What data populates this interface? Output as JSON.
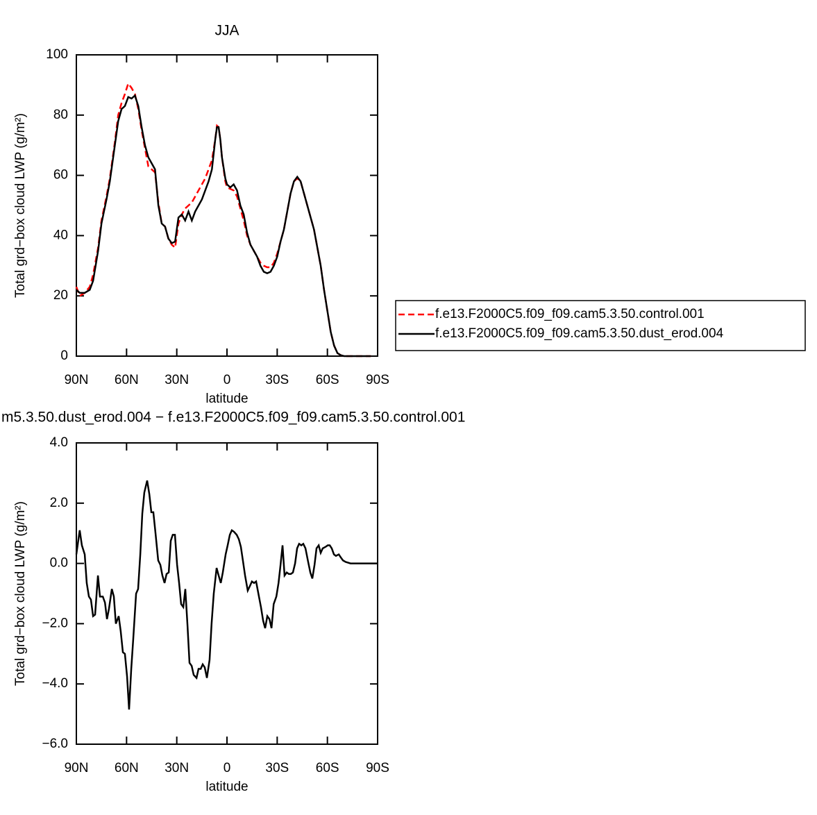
{
  "chart_data": [
    {
      "type": "line",
      "title": "JJA",
      "xlabel": "latitude",
      "ylabel": "Total grd−box cloud LWP (g/m²)",
      "xlim": [
        90,
        -90
      ],
      "xticks": [
        {
          "value": 90,
          "label": "90N"
        },
        {
          "value": 60,
          "label": "60N"
        },
        {
          "value": 30,
          "label": "30N"
        },
        0,
        {
          "value": -30,
          "label": "30S"
        },
        {
          "value": -60,
          "label": "60S"
        },
        {
          "value": -90,
          "label": "90S"
        }
      ],
      "ylim": [
        0,
        100
      ],
      "yticks": [
        0,
        20,
        40,
        60,
        80,
        100
      ],
      "legend": "right",
      "x": [
        90,
        88,
        85,
        82,
        80,
        77,
        75,
        72,
        70,
        67,
        65,
        63,
        61,
        59,
        57,
        55,
        53,
        51,
        49,
        47,
        45,
        43,
        41,
        39,
        37,
        35,
        33,
        31,
        29,
        27,
        25,
        23,
        21,
        19,
        17,
        15,
        13,
        11,
        9,
        7,
        6,
        5,
        4,
        3,
        1,
        0,
        -2,
        -4,
        -6,
        -8,
        -10,
        -12,
        -14,
        -16,
        -18,
        -20,
        -22,
        -24,
        -26,
        -28,
        -30,
        -32,
        -34,
        -36,
        -38,
        -40,
        -42,
        -44,
        -46,
        -48,
        -50,
        -52,
        -54,
        -56,
        -58,
        -60,
        -62,
        -64,
        -66,
        -68,
        -70,
        -74,
        -78,
        -82,
        -86
      ],
      "series": [
        {
          "name": "f.e13.F2000C5.f09_f09.cam5.3.50.control.001",
          "color": "#ff0000",
          "dash": true,
          "values": [
            23,
            20,
            21,
            23,
            27,
            36,
            45,
            53,
            59,
            71,
            80,
            84,
            87,
            90.5,
            89,
            87,
            82,
            75,
            69,
            63,
            62,
            61,
            51,
            44,
            43,
            39,
            37,
            36,
            44,
            47,
            49,
            50,
            51,
            53,
            55,
            57,
            59,
            62,
            65,
            72,
            76.5,
            76,
            72,
            66,
            58,
            56,
            55.5,
            55,
            53,
            49,
            45,
            40,
            37,
            35,
            33,
            31,
            30,
            29.5,
            29.5,
            31,
            34,
            38,
            42,
            48,
            54,
            58,
            59,
            58,
            54,
            50,
            46,
            42,
            36,
            30,
            22,
            15,
            8,
            3.5,
            1,
            0.3,
            0,
            0,
            0,
            0,
            0
          ]
        },
        {
          "name": "f.e13.F2000C5.f09_f09.cam5.3.50.dust_erod.004",
          "color": "#000000",
          "dash": false,
          "values": [
            22,
            21,
            21,
            22,
            25,
            35,
            44,
            52,
            58,
            70,
            78,
            82,
            83,
            86,
            85.5,
            86.5,
            83,
            76,
            70,
            66,
            64,
            62,
            50,
            44,
            43,
            39,
            37.5,
            38,
            46,
            47,
            45,
            48,
            45,
            48,
            50,
            52,
            55,
            58,
            62,
            72,
            76,
            76,
            72,
            66,
            59,
            57,
            56,
            57,
            55,
            50,
            47,
            41,
            37,
            35,
            33,
            30,
            28,
            27.5,
            28,
            30,
            33,
            38,
            42,
            48,
            54,
            58,
            59.5,
            58,
            54,
            50,
            46,
            42,
            36,
            30,
            22,
            15,
            8,
            3.5,
            1,
            0.3,
            0,
            0,
            0,
            0,
            0
          ]
        }
      ]
    },
    {
      "type": "line",
      "title": "m5.3.50.dust_erod.004 − f.e13.F2000C5.f09_f09.cam5.3.50.control.001",
      "xlabel": "latitude",
      "ylabel": "Total grd−box cloud LWP (g/m²)",
      "xlim": [
        90,
        -90
      ],
      "xticks": [
        {
          "value": 90,
          "label": "90N"
        },
        {
          "value": 60,
          "label": "60N"
        },
        {
          "value": 30,
          "label": "30N"
        },
        0,
        {
          "value": -30,
          "label": "30S"
        },
        {
          "value": -60,
          "label": "60S"
        },
        {
          "value": -90,
          "label": "90S"
        }
      ],
      "ylim": [
        -6,
        4
      ],
      "yticks": [
        {
          "value": -6,
          "label": "−6.0"
        },
        {
          "value": -4,
          "label": "−4.0"
        },
        {
          "value": -2,
          "label": "−2.0"
        },
        {
          "value": 0,
          "label": "0.0"
        },
        {
          "value": 2,
          "label": "2.0"
        },
        {
          "value": 4,
          "label": "4.0"
        }
      ],
      "x": [
        90,
        88,
        86.7,
        85,
        83.8,
        82.5,
        81.3,
        80,
        78.8,
        77.1,
        75.9,
        74.2,
        72.9,
        71.7,
        70.5,
        68.8,
        67.6,
        66.4,
        64.7,
        63.5,
        62.2,
        61,
        59.7,
        58.5,
        57.2,
        56,
        54.3,
        53.1,
        51.8,
        50.6,
        49.4,
        47.7,
        46.4,
        45.2,
        44,
        42.7,
        41.1,
        39.8,
        38.6,
        37.3,
        36.1,
        34.8,
        33.6,
        32.4,
        31.1,
        29.8,
        28.6,
        27.4,
        26.1,
        24.9,
        23.6,
        22.4,
        21.1,
        19.9,
        18.2,
        17,
        15.7,
        14.5,
        13.3,
        12,
        10.4,
        9.2,
        7.9,
        6.2,
        5,
        3.7,
        2.5,
        0.8,
        -0.4,
        -1.7,
        -2.9,
        -4.2,
        -5.8,
        -7.1,
        -8.3,
        -9.5,
        -10.8,
        -12.4,
        -13.7,
        -14.9,
        -16.2,
        -17.4,
        -19.1,
        -20.3,
        -21.6,
        -22.8,
        -24.1,
        -25.4,
        -26.6,
        -27.9,
        -29.5,
        -30.8,
        -32,
        -33.2,
        -34.4,
        -35.7,
        -36.9,
        -38.2,
        -39.4,
        -40.7,
        -41.9,
        -43.1,
        -44.4,
        -45.6,
        -46.9,
        -48.5,
        -49.8,
        -51,
        -52.3,
        -53.5,
        -54.8,
        -56,
        -57.2,
        -58.9,
        -60.2,
        -61.4,
        -62.6,
        -63.9,
        -65.1,
        -66.8,
        -68,
        -69.3,
        -70.9,
        -73.8,
        -80.1,
        -90
      ],
      "series": [
        {
          "color": "#000000",
          "values": [
            0.3,
            1.1,
            0.6,
            0.3,
            -0.65,
            -1.1,
            -1.2,
            -1.75,
            -1.7,
            -0.4,
            -1.1,
            -1.1,
            -1.3,
            -1.85,
            -1.5,
            -0.85,
            -1.1,
            -2,
            -1.75,
            -2.25,
            -2.95,
            -3,
            -3.75,
            -4.85,
            -3.5,
            -2.5,
            -1,
            -0.85,
            0.3,
            1.65,
            2.35,
            2.75,
            2.3,
            1.7,
            1.7,
            1,
            0.1,
            -0.05,
            -0.4,
            -0.65,
            -0.35,
            -0.3,
            0.75,
            0.95,
            0.95,
            -0.05,
            -0.65,
            -1.35,
            -1.45,
            -0.85,
            -2.05,
            -3.3,
            -3.4,
            -3.7,
            -3.8,
            -3.5,
            -3.5,
            -3.35,
            -3.45,
            -3.8,
            -3.2,
            -2,
            -1,
            -0.15,
            -0.4,
            -0.65,
            -0.3,
            0.3,
            0.6,
            0.95,
            1.1,
            1.05,
            0.95,
            0.8,
            0.55,
            0.1,
            -0.4,
            -0.9,
            -0.75,
            -0.6,
            -0.65,
            -0.6,
            -1.1,
            -1.45,
            -1.9,
            -2.15,
            -1.75,
            -1.85,
            -2.15,
            -1.35,
            -1.1,
            -0.65,
            -0.05,
            0.6,
            -0.4,
            -0.3,
            -0.35,
            -0.35,
            -0.3,
            0,
            0.5,
            0.65,
            0.6,
            0.65,
            0.5,
            0.05,
            -0.3,
            -0.5,
            -0.05,
            0.5,
            0.6,
            0.35,
            0.5,
            0.55,
            0.6,
            0.6,
            0.5,
            0.3,
            0.25,
            0.3,
            0.2,
            0.1,
            0.05,
            0,
            0,
            0
          ]
        }
      ]
    }
  ]
}
